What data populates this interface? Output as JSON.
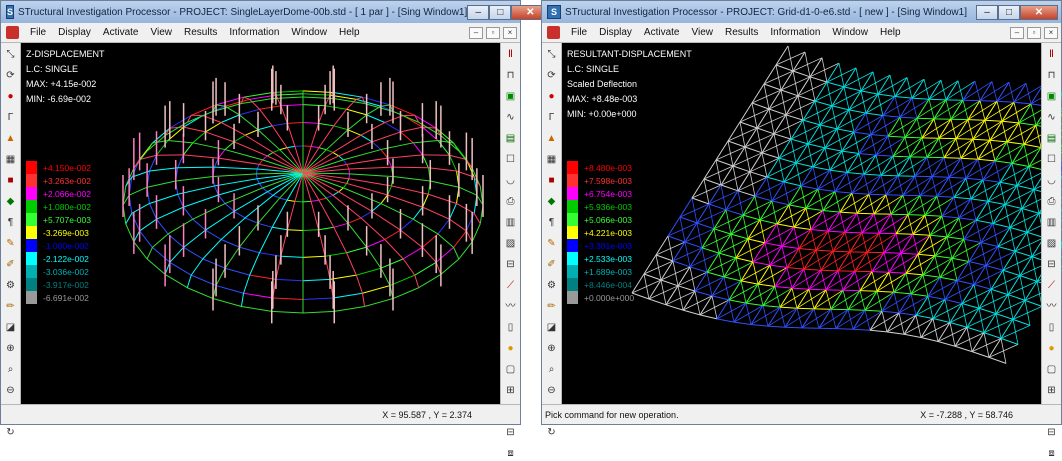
{
  "win1": {
    "title": "STructural Investigation Processor - PROJECT: SingleLayerDome-00b.std - [ 1 par ] - [Sing Window1]",
    "menu": [
      "File",
      "Display",
      "Activate",
      "View",
      "Results",
      "Information",
      "Window",
      "Help"
    ],
    "info": [
      "Z-DISPLACEMENT",
      "L.C: SINGLE",
      "MAX: +4.15e-002",
      "MIN: -6.69e-002"
    ],
    "legend": [
      {
        "label": "+4.150e-002",
        "color": "#ff0000"
      },
      {
        "label": "+3.263e-002",
        "color": "#ff3030"
      },
      {
        "label": "+2.066e-002",
        "color": "#ff00ff"
      },
      {
        "label": "+1.080e-002",
        "color": "#00cc00"
      },
      {
        "label": "+5.707e-003",
        "color": "#33ff33"
      },
      {
        "label": "-3.269e-003",
        "color": "#ffff00"
      },
      {
        "label": "-1.000e-002",
        "color": "#0000ff"
      },
      {
        "label": "-2.122e-002",
        "color": "#00ffff"
      },
      {
        "label": "-3.036e-002",
        "color": "#00b0b0"
      },
      {
        "label": "-3.917e-002",
        "color": "#008080"
      },
      {
        "label": "-6.691e-002",
        "color": "#999999"
      }
    ],
    "status_msg": "",
    "coords": "X = 95.587 , Y = 2.374"
  },
  "win2": {
    "title": "STructural Investigation Processor - PROJECT: Grid-d1-0-e6.std - [ new ] - [Sing Window1]",
    "menu": [
      "File",
      "Display",
      "Activate",
      "View",
      "Results",
      "Information",
      "Window",
      "Help"
    ],
    "info": [
      "RESULTANT-DISPLACEMENT",
      "L.C: SINGLE",
      "Scaled Deflection",
      "MAX: +8.48e-003",
      "MIN: +0.00e+000"
    ],
    "legend": [
      {
        "label": "+8.480e-003",
        "color": "#ff0000"
      },
      {
        "label": "+7.598e-003",
        "color": "#ff3030"
      },
      {
        "label": "+6.754e-003",
        "color": "#ff00ff"
      },
      {
        "label": "+5.936e-003",
        "color": "#00cc00"
      },
      {
        "label": "+5.066e-003",
        "color": "#33ff33"
      },
      {
        "label": "+4.221e-003",
        "color": "#ffff00"
      },
      {
        "label": "+3.381e-003",
        "color": "#0000ff"
      },
      {
        "label": "+2.533e-003",
        "color": "#00ffff"
      },
      {
        "label": "+1.689e-003",
        "color": "#00b0b0"
      },
      {
        "label": "+8.446e-004",
        "color": "#008080"
      },
      {
        "label": "+0.000e+000",
        "color": "#999999"
      }
    ],
    "status_msg": "Pick command for new operation.",
    "coords": "X = -7.288 , Y = 58.746"
  }
}
